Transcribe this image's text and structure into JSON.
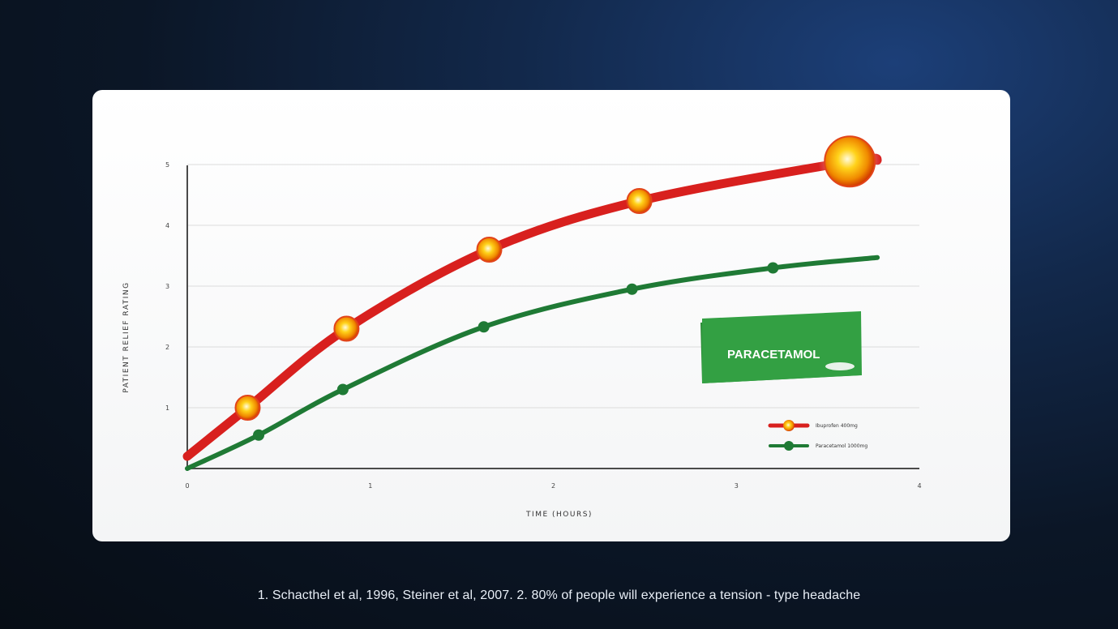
{
  "footnote": "1. Schacthel et al, 1996, Steiner et al, 2007. 2. 80% of people will experience a tension - type headache",
  "product_box": {
    "label": "PARACETAMOL",
    "color": "#2e9a3a"
  },
  "chart_data": {
    "type": "line",
    "xlabel": "TIME (HOURS)",
    "ylabel": "PATIENT RELIEF RATING",
    "xlim": [
      0,
      4
    ],
    "ylim": [
      0,
      5
    ],
    "x_ticks": [
      "0",
      "1",
      "2",
      "3",
      "4"
    ],
    "y_ticks": [
      "1",
      "2",
      "3",
      "4",
      "5"
    ],
    "grid": true,
    "legend_position": "bottom-right",
    "series": [
      {
        "name": "Ibuprofen 400mg",
        "color": "#d8201e",
        "marker_color": "#f5b000",
        "x": [
          0.0,
          0.33,
          0.87,
          1.65,
          2.47,
          3.62,
          3.77
        ],
        "y": [
          0.2,
          1.0,
          2.3,
          3.6,
          4.4,
          5.05,
          5.07
        ],
        "markers": [
          {
            "x": 0.33,
            "y": 1.0
          },
          {
            "x": 0.87,
            "y": 2.3
          },
          {
            "x": 1.65,
            "y": 3.6
          },
          {
            "x": 2.47,
            "y": 4.4
          },
          {
            "x": 3.62,
            "y": 5.05
          }
        ]
      },
      {
        "name": "Paracetamol 1000mg",
        "color": "#1f7a35",
        "marker_color": "#1f7a35",
        "x": [
          0.0,
          0.39,
          0.85,
          1.62,
          2.43,
          3.2,
          3.77
        ],
        "y": [
          0.0,
          0.55,
          1.3,
          2.33,
          2.95,
          3.3,
          3.47
        ],
        "markers": [
          {
            "x": 0.39,
            "y": 0.55
          },
          {
            "x": 0.85,
            "y": 1.3
          },
          {
            "x": 1.62,
            "y": 2.33
          },
          {
            "x": 2.43,
            "y": 2.95
          },
          {
            "x": 3.2,
            "y": 3.3
          }
        ]
      }
    ]
  }
}
